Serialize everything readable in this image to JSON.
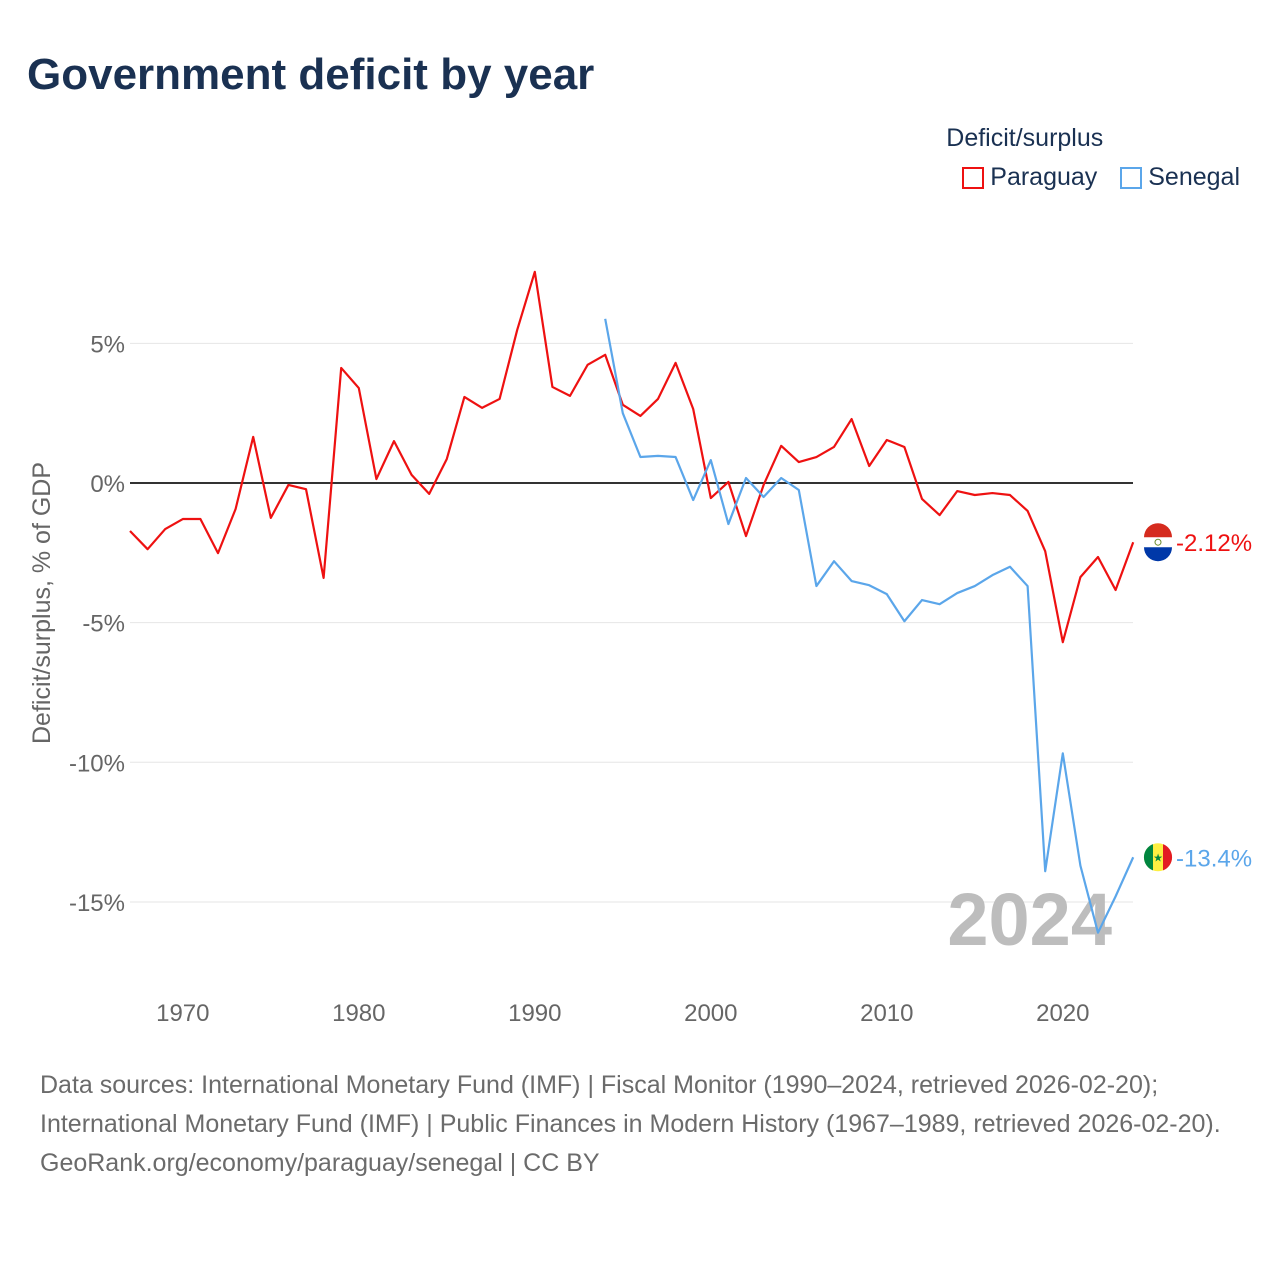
{
  "title": "Government deficit by year",
  "legend": {
    "title": "Deficit/surplus",
    "items": [
      {
        "name": "Paraguay",
        "color": "#ee1111"
      },
      {
        "name": "Senegal",
        "color": "#5ba6ea"
      }
    ]
  },
  "watermark_year": "2024",
  "chart_data": {
    "type": "line",
    "title": "Government deficit by year",
    "xlabel": "",
    "ylabel": "Deficit/surplus, % of GDP",
    "xlim": [
      1967,
      2024
    ],
    "ylim": [
      -17,
      9
    ],
    "x_ticks": [
      1970,
      1980,
      1990,
      2000,
      2010,
      2020
    ],
    "y_ticks": [
      {
        "v": 5,
        "label": "5%"
      },
      {
        "v": 0,
        "label": "0%"
      },
      {
        "v": -5,
        "label": "-5%"
      },
      {
        "v": -10,
        "label": "-10%"
      },
      {
        "v": -15,
        "label": "-15%"
      }
    ],
    "grid": true,
    "legend_position": "top-right",
    "series": [
      {
        "name": "Paraguay",
        "color": "#ee1111",
        "end_label": "-2.12%",
        "start_year": 1967,
        "values": [
          -1.72,
          -2.37,
          -1.65,
          -1.29,
          -1.29,
          -2.51,
          -0.93,
          1.65,
          -1.25,
          -0.07,
          -0.22,
          -3.4,
          4.12,
          3.4,
          0.14,
          1.5,
          0.29,
          -0.39,
          0.86,
          3.08,
          2.69,
          3.01,
          5.48,
          7.56,
          3.44,
          3.12,
          4.23,
          4.59,
          2.8,
          2.4,
          3.01,
          4.3,
          2.65,
          -0.54,
          0.04,
          -1.9,
          -0.07,
          1.33,
          0.75,
          0.93,
          1.29,
          2.29,
          0.61,
          1.54,
          1.29,
          -0.57,
          -1.15,
          -0.29,
          -0.43,
          -0.36,
          -0.43,
          -1.0,
          -2.44,
          -5.7,
          -3.37,
          -2.65,
          -3.83,
          -2.12
        ]
      },
      {
        "name": "Senegal",
        "color": "#5ba6ea",
        "end_label": "-13.4%",
        "start_year": 1994,
        "values": [
          5.88,
          2.5,
          0.93,
          0.97,
          0.93,
          -0.61,
          0.82,
          -1.47,
          0.18,
          -0.5,
          0.18,
          -0.25,
          -3.69,
          -2.8,
          -3.51,
          -3.66,
          -3.98,
          -4.95,
          -4.19,
          -4.34,
          -3.94,
          -3.69,
          -3.3,
          -3.0,
          -3.69,
          -13.9,
          -9.68,
          -13.7,
          -16.1,
          -14.8,
          -13.4
        ]
      }
    ]
  },
  "sources": {
    "line1": "Data sources: International Monetary Fund (IMF) | Fiscal Monitor (1990–2024, retrieved 2026-02-20); International Monetary Fund (IMF) | Public Finances in Modern History (1967–1989, retrieved 2026-02-20).",
    "line2": "GeoRank.org/economy/paraguay/senegal | CC BY"
  }
}
